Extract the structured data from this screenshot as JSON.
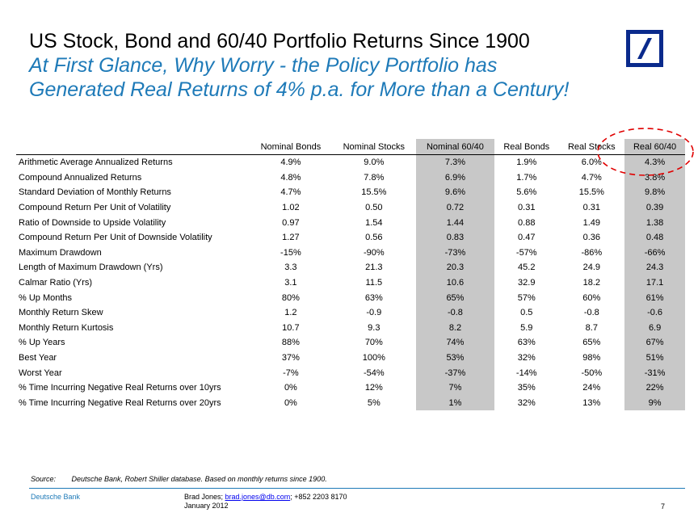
{
  "title": "US Stock, Bond and 60/40 Portfolio Returns Since 1900",
  "subtitle_line1": "At First Glance, Why Worry - the Policy Portfolio has",
  "subtitle_line2": "Generated Real Returns of 4% p.a. for More than a Century!",
  "colors": {
    "subtitle": "#1e7ab8",
    "logo": "#0a2a8c",
    "shade": "#c8c8c8",
    "circle": "#e00000"
  },
  "table": {
    "headers": [
      "Nominal Bonds",
      "Nominal Stocks",
      "Nominal 60/40",
      "Real Bonds",
      "Real Stocks",
      "Real 60/40"
    ],
    "rows": [
      {
        "label": "Arithmetic Average Annualized Returns",
        "values": [
          "4.9%",
          "9.0%",
          "7.3%",
          "1.9%",
          "6.0%",
          "4.3%"
        ]
      },
      {
        "label": "Compound Annualized Returns",
        "values": [
          "4.8%",
          "7.8%",
          "6.9%",
          "1.7%",
          "4.7%",
          "3.8%"
        ]
      },
      {
        "label": "Standard Deviation of Monthly Returns",
        "values": [
          "4.7%",
          "15.5%",
          "9.6%",
          "5.6%",
          "15.5%",
          "9.8%"
        ]
      },
      {
        "label": "Compound Return Per Unit of Volatility",
        "values": [
          "1.02",
          "0.50",
          "0.72",
          "0.31",
          "0.31",
          "0.39"
        ]
      },
      {
        "label": "Ratio of Downside to Upside Volatility",
        "values": [
          "0.97",
          "1.54",
          "1.44",
          "0.88",
          "1.49",
          "1.38"
        ]
      },
      {
        "label": "Compound Return Per Unit of Downside Volatility",
        "values": [
          "1.27",
          "0.56",
          "0.83",
          "0.47",
          "0.36",
          "0.48"
        ]
      },
      {
        "label": "Maximum Drawdown",
        "values": [
          "-15%",
          "-90%",
          "-73%",
          "-57%",
          "-86%",
          "-66%"
        ]
      },
      {
        "label": "Length of Maximum Drawdown (Yrs)",
        "values": [
          "3.3",
          "21.3",
          "20.3",
          "45.2",
          "24.9",
          "24.3"
        ]
      },
      {
        "label": "Calmar Ratio (Yrs)",
        "values": [
          "3.1",
          "11.5",
          "10.6",
          "32.9",
          "18.2",
          "17.1"
        ]
      },
      {
        "label": "% Up Months",
        "values": [
          "80%",
          "63%",
          "65%",
          "57%",
          "60%",
          "61%"
        ]
      },
      {
        "label": "Monthly Return Skew",
        "values": [
          "1.2",
          "-0.9",
          "-0.8",
          "0.5",
          "-0.8",
          "-0.6"
        ]
      },
      {
        "label": "Monthly Return Kurtosis",
        "values": [
          "10.7",
          "9.3",
          "8.2",
          "5.9",
          "8.7",
          "6.9"
        ]
      },
      {
        "label": "% Up Years",
        "values": [
          "88%",
          "70%",
          "74%",
          "63%",
          "65%",
          "67%"
        ]
      },
      {
        "label": "Best Year",
        "values": [
          "37%",
          "100%",
          "53%",
          "32%",
          "98%",
          "51%"
        ]
      },
      {
        "label": "Worst Year",
        "values": [
          "-7%",
          "-54%",
          "-37%",
          "-14%",
          "-50%",
          "-31%"
        ]
      },
      {
        "label": "% Time Incurring Negative Real Returns over 10yrs",
        "values": [
          "0%",
          "12%",
          "7%",
          "35%",
          "24%",
          "22%"
        ]
      },
      {
        "label": "% Time Incurring Negative Real Returns over 20yrs",
        "values": [
          "0%",
          "5%",
          "1%",
          "32%",
          "13%",
          "9%"
        ]
      }
    ],
    "shaded_columns": [
      2,
      5
    ]
  },
  "source": {
    "label": "Source:",
    "text": "Deutsche Bank, Robert Shiller database. Based on monthly returns since 1900."
  },
  "footer": {
    "bank": "Deutsche Bank",
    "author": "Brad Jones; ",
    "email": "brad.jones@db.com",
    "phone": "; +852 2203 8170",
    "date": "January 2012",
    "page": "7"
  }
}
